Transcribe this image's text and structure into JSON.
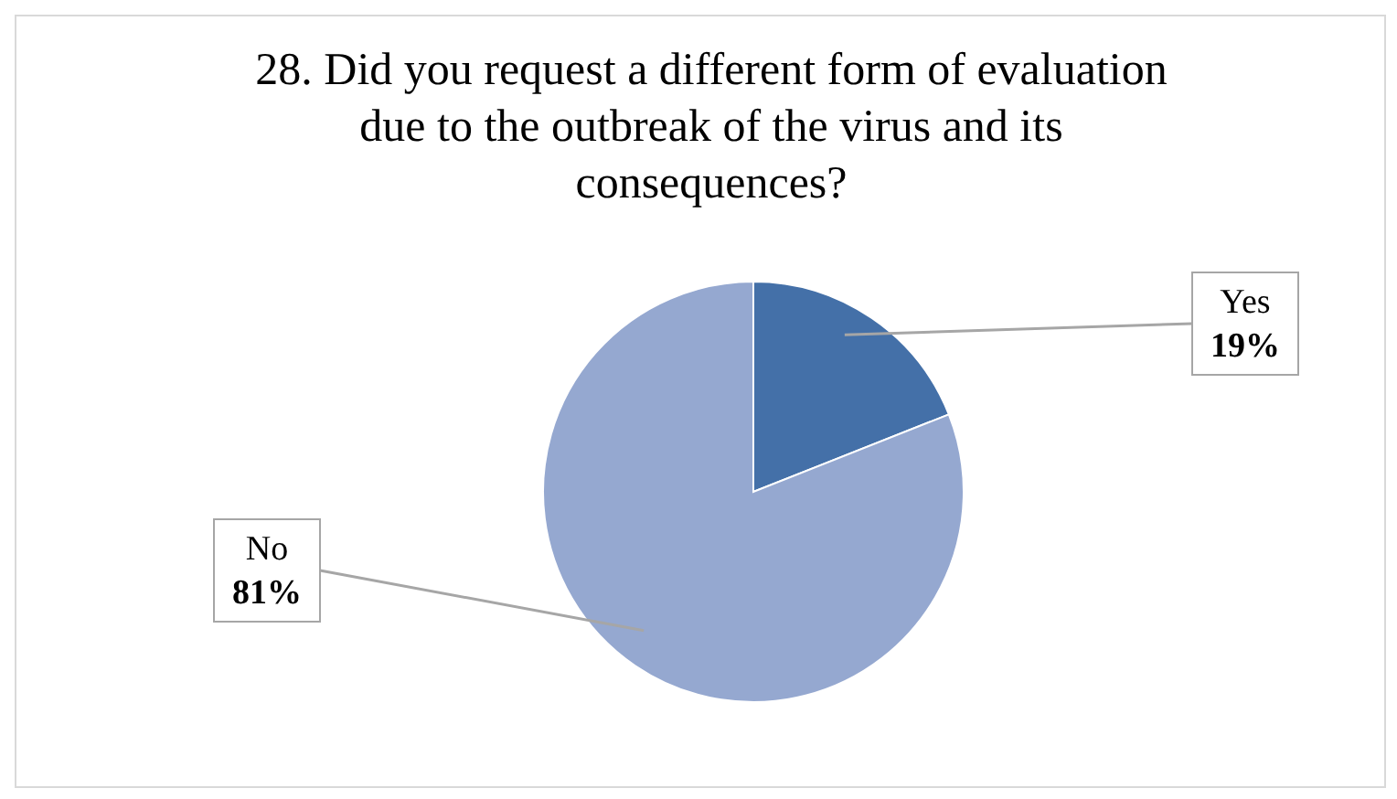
{
  "chart_data": {
    "type": "pie",
    "title": "28. Did you request a different form of evaluation due to the outbreak of the virus and its consequences?",
    "categories": [
      "Yes",
      "No"
    ],
    "values": [
      19,
      81
    ],
    "colors": [
      "#4470a8",
      "#95a8d0"
    ],
    "value_labels": [
      "19%",
      "81%"
    ],
    "legend": false
  }
}
